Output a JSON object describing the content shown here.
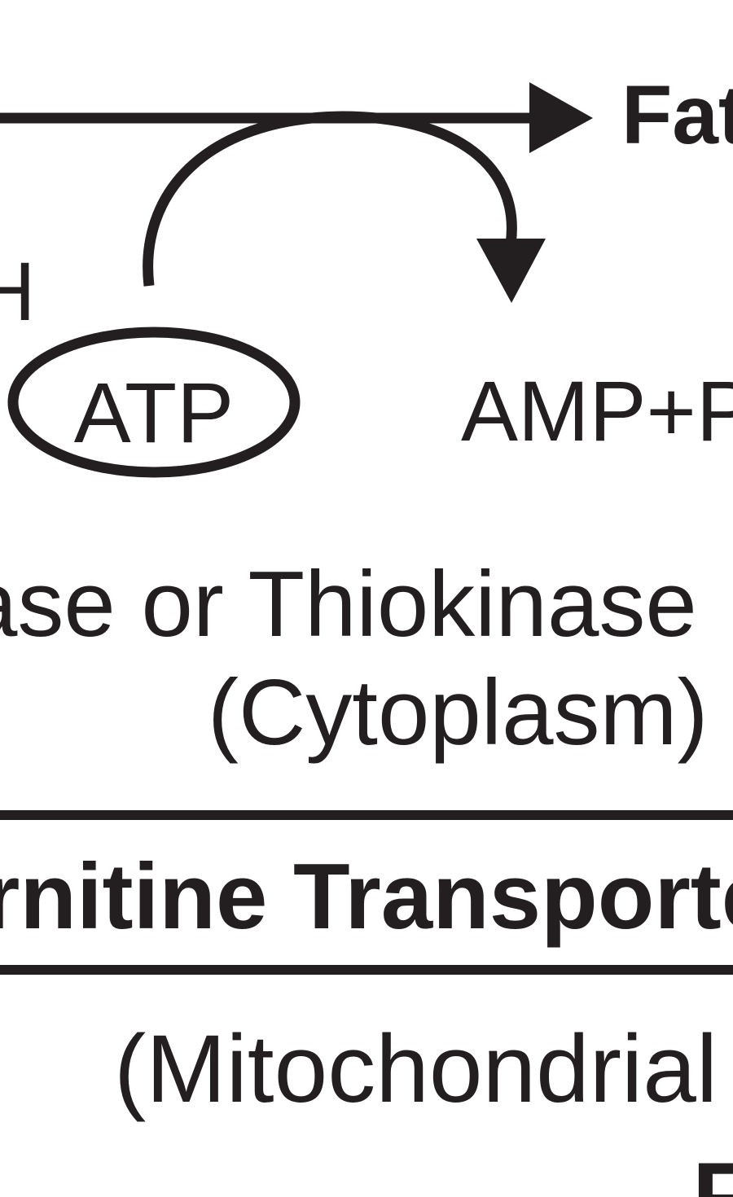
{
  "diagram": {
    "product_label_partial": "Fat",
    "left_label_partial": "H",
    "atp_label": "ATP",
    "byproduct_label_partial": "AMP+P",
    "enzyme_label_partial": "ase or Thiokinase",
    "location_label": "(Cytoplasm)",
    "transporter_label_partial": "rnitine Transporte",
    "mitochondrial_label_partial": "(Mitochondrial s",
    "bottom_label_partial": "F"
  }
}
